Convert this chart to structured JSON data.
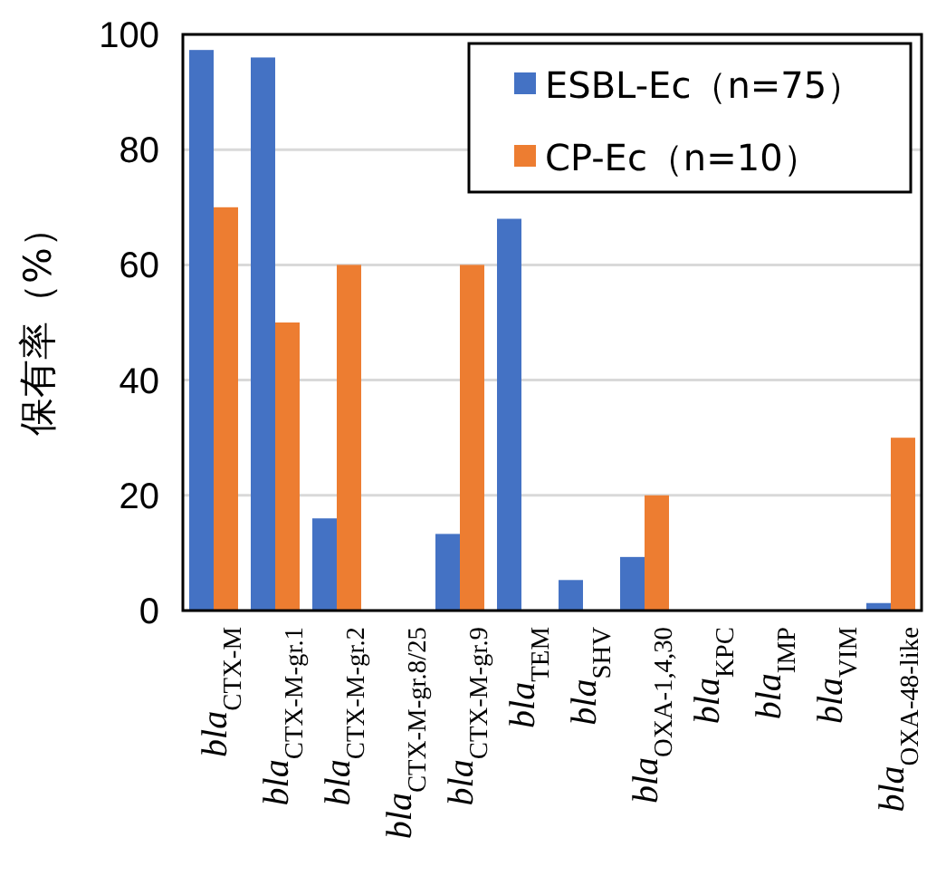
{
  "chart_data": {
    "type": "bar",
    "ylabel": "保有率（%）",
    "categories": [
      "*bla*$_{CTX-M}$",
      "*bla*$_{CTX-M-gr.1}$",
      "*bla*$_{CTX-M-gr.2}$",
      "*bla*$_{CTX-M-gr.8/25}$",
      "*bla*$_{CTX-M-gr.9}$",
      "*bla*$_{TEM}$",
      "*bla*$_{SHV}$",
      "*bla*$_{OXA-1,4,30}$",
      "*bla*$_{KPC}$",
      "*bla*$_{IMP}$",
      "*bla*$_{VIM}$",
      "*bla*$_{OXA-48-like}$"
    ],
    "series": [
      {
        "name": "ESBL-Ec（n=75）",
        "color": "#4472c4",
        "values": [
          97.3,
          96,
          16,
          0,
          13.3,
          68,
          5.3,
          9.3,
          0,
          0,
          0,
          1.3
        ]
      },
      {
        "name": "CP-Ec（n=10）",
        "color": "#ed7d31",
        "values": [
          70,
          50,
          60,
          0,
          60,
          0,
          0,
          20,
          0,
          0,
          0,
          30
        ]
      }
    ],
    "ylim": [
      0,
      100
    ],
    "yticks": [
      0,
      20,
      40,
      60,
      80,
      100
    ],
    "grid": "y",
    "legend": "top right"
  }
}
